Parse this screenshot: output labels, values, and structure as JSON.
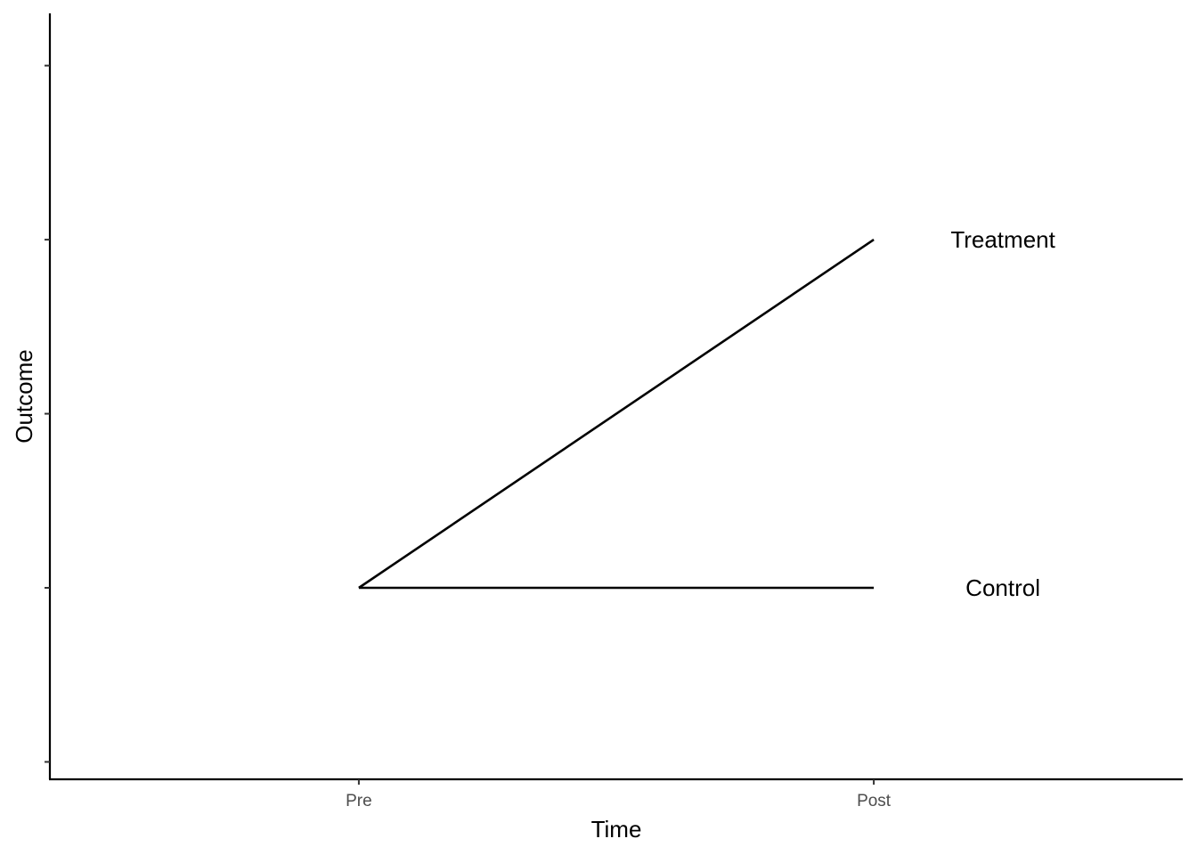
{
  "chart_data": {
    "type": "line",
    "title": "",
    "xlabel": "Time",
    "ylabel": "Outcome",
    "categories": [
      "Pre",
      "Post"
    ],
    "x_range": [
      -0.6,
      1.6
    ],
    "ylim": [
      -1.1,
      3.3
    ],
    "y_ticks": [
      -1,
      0,
      1,
      2,
      3
    ],
    "y_tick_labels_visible": false,
    "grid": false,
    "legend": "none (direct labels at line ends)",
    "line_color": "#000000",
    "series": [
      {
        "name": "Treatment",
        "values": [
          0,
          2
        ]
      },
      {
        "name": "Control",
        "values": [
          0,
          0
        ]
      }
    ]
  }
}
